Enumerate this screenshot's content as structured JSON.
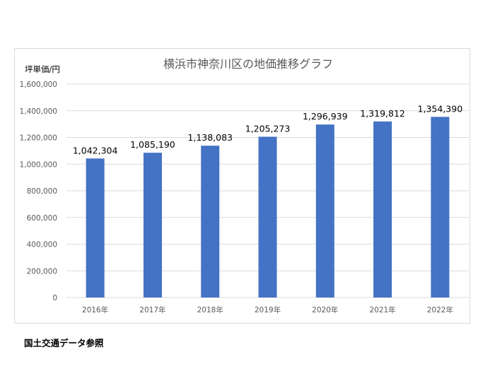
{
  "chart_data": {
    "type": "bar",
    "title": "横浜市神奈川区の地価推移グラフ",
    "ylabel": "坪単価/円",
    "xlabel": "",
    "categories": [
      "2016年",
      "2017年",
      "2018年",
      "2019年",
      "2020年",
      "2021年",
      "2022年"
    ],
    "values": [
      1042304,
      1085190,
      1138083,
      1205273,
      1296939,
      1319812,
      1354390
    ],
    "data_labels": [
      "1,042,304",
      "1,085,190",
      "1,138,083",
      "1,205,273",
      "1,296,939",
      "1,319,812",
      "1,354,390"
    ],
    "ylim": [
      0,
      1600000
    ],
    "y_ticks": [
      0,
      200000,
      400000,
      600000,
      800000,
      1000000,
      1200000,
      1400000,
      1600000
    ],
    "y_tick_labels": [
      "0",
      "200,000",
      "400,000",
      "600,000",
      "800,000",
      "1,000,000",
      "1,200,000",
      "1,400,000",
      "1,600,000"
    ],
    "grid": true,
    "legend": "none",
    "bar_color": "#4472c4",
    "grid_color": "#d9d9d9"
  },
  "source_note": "国土交通データ参照"
}
